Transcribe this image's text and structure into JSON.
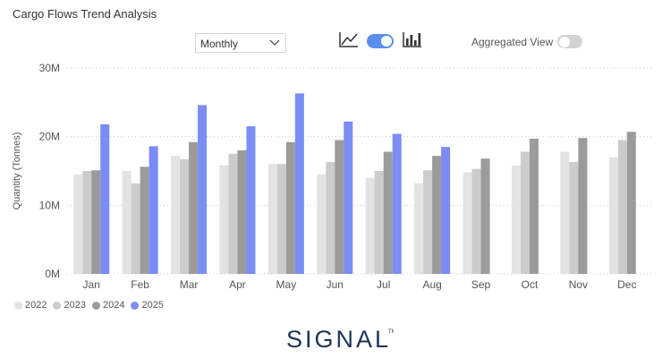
{
  "header": {
    "title": "Cargo Flows Trend Analysis"
  },
  "controls": {
    "period": {
      "selected": "Monthly",
      "icon": "chevron-down-icon"
    },
    "chart_type_line_icon": "line-chart-icon",
    "chart_type_bar_icon": "bar-chart-icon",
    "chart_type_toggle_on": true,
    "aggregated_label": "Aggregated View",
    "aggregated_on": false
  },
  "branding": {
    "logo_text": "SIGNAL"
  },
  "colors": {
    "2022": "#e3e3e3",
    "2023": "#cccccc",
    "2024": "#9b9b9b",
    "2025": "#7a8cf5",
    "accent": "#5b8def"
  },
  "chart_data": {
    "type": "bar",
    "title": "",
    "xlabel": "",
    "ylabel": "Quantity (Tonnes)",
    "ylim": [
      0,
      30000000
    ],
    "yticks": [
      0,
      10000000,
      20000000,
      30000000
    ],
    "ytick_labels": [
      "0M",
      "10M",
      "20M",
      "30M"
    ],
    "grid": true,
    "legend_position": "bottom-left",
    "categories": [
      "Jan",
      "Feb",
      "Mar",
      "Apr",
      "May",
      "Jun",
      "Jul",
      "Aug",
      "Sep",
      "Oct",
      "Nov",
      "Dec"
    ],
    "series": [
      {
        "name": "2022",
        "values": [
          14500000,
          15000000,
          17200000,
          15800000,
          16000000,
          14500000,
          14000000,
          13200000,
          14800000,
          15800000,
          17800000,
          17000000
        ]
      },
      {
        "name": "2023",
        "values": [
          15000000,
          13200000,
          16700000,
          17500000,
          16000000,
          16300000,
          15000000,
          15100000,
          15300000,
          17800000,
          16300000,
          19500000
        ]
      },
      {
        "name": "2024",
        "values": [
          15100000,
          15600000,
          19200000,
          18000000,
          19200000,
          19500000,
          17800000,
          17200000,
          16800000,
          19700000,
          19800000,
          20700000
        ]
      },
      {
        "name": "2025",
        "values": [
          21800000,
          18600000,
          24600000,
          21500000,
          26300000,
          22200000,
          20400000,
          18500000,
          null,
          null,
          null,
          null
        ]
      }
    ]
  }
}
